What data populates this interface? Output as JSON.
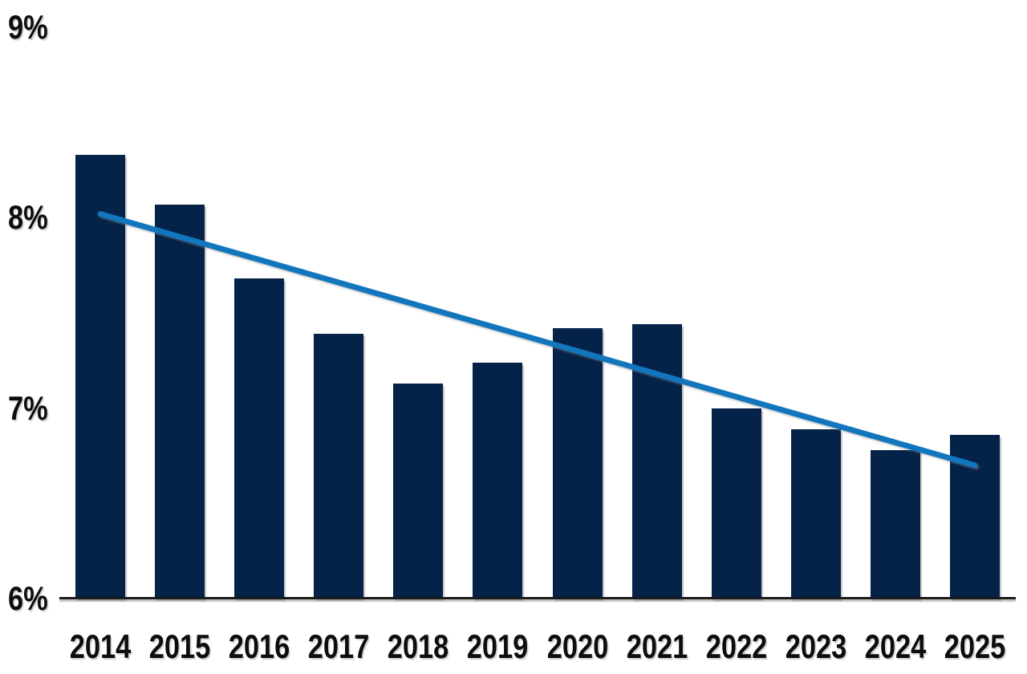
{
  "page": {
    "background": "#ffffff"
  },
  "chart_data": {
    "type": "bar",
    "title": "",
    "categories": [
      "2014",
      "2015",
      "2016",
      "2017",
      "2018",
      "2019",
      "2020",
      "2021",
      "2022",
      "2023",
      "2024",
      "2025"
    ],
    "values": [
      8.33,
      8.07,
      7.68,
      7.39,
      7.13,
      7.24,
      7.42,
      7.44,
      7.0,
      6.89,
      6.78,
      6.86
    ],
    "unit": "%",
    "xlabel": "",
    "ylabel": "",
    "ylim": [
      6,
      9
    ],
    "y_ticks": [
      {
        "value": 9,
        "label": "9%"
      },
      {
        "value": 8,
        "label": "8%"
      },
      {
        "value": 7,
        "label": "7%"
      },
      {
        "value": 6,
        "label": "6%"
      }
    ],
    "grid": false,
    "legend": "none",
    "bar_color": "#052248",
    "axis_color": "#1a1a1a",
    "label_color": "#0d0d0d",
    "trend_line": {
      "type": "linear",
      "color": "#1176bd",
      "stroke_width": 7,
      "start": {
        "category": "2014",
        "value": 8.02
      },
      "end": {
        "category": "2025",
        "value": 6.7
      }
    }
  }
}
